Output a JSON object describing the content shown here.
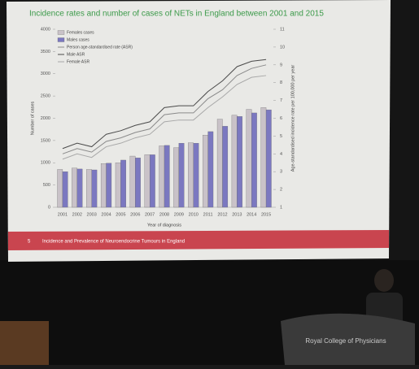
{
  "chart_data": {
    "type": "bar",
    "title": "Incidence rates and number of cases of NETs in England between 2001 and 2015",
    "x_label": "Year of diagnosis",
    "y_label": "Number of cases",
    "y2_label": "Age-standardised incidence rate per 100,000 per year",
    "categories": [
      "2001",
      "2002",
      "2003",
      "2004",
      "2005",
      "2006",
      "2007",
      "2008",
      "2009",
      "2010",
      "2011",
      "2012",
      "2013",
      "2014",
      "2015"
    ],
    "series": [
      {
        "name": "Females cases",
        "type": "bar",
        "color": "#c9c2c8",
        "values": [
          850,
          880,
          850,
          980,
          1000,
          1150,
          1180,
          1380,
          1340,
          1450,
          1620,
          1980,
          2070,
          2200,
          2240
        ]
      },
      {
        "name": "Males cases",
        "type": "bar",
        "color": "#7b78c0",
        "values": [
          800,
          860,
          840,
          990,
          1060,
          1110,
          1180,
          1390,
          1440,
          1440,
          1700,
          1820,
          2040,
          2120,
          2190
        ]
      },
      {
        "name": "Person age-standardised rate (ASR)",
        "type": "line",
        "axis": "y2",
        "color": "#8a8a8a",
        "values": [
          4.0,
          4.3,
          4.1,
          4.7,
          4.9,
          5.2,
          5.4,
          6.2,
          6.3,
          6.3,
          7.1,
          7.6,
          8.4,
          8.8,
          9.0
        ]
      },
      {
        "name": "Male ASR",
        "type": "line",
        "axis": "y2",
        "color": "#4a4a4a",
        "values": [
          4.3,
          4.6,
          4.4,
          5.1,
          5.3,
          5.6,
          5.8,
          6.6,
          6.7,
          6.7,
          7.5,
          8.1,
          8.9,
          9.2,
          9.3
        ]
      },
      {
        "name": "Female ASR",
        "type": "line",
        "axis": "y2",
        "color": "#a8a8a8",
        "values": [
          3.7,
          4.0,
          3.8,
          4.4,
          4.6,
          4.9,
          5.1,
          5.8,
          5.9,
          5.9,
          6.6,
          7.2,
          7.9,
          8.3,
          8.4
        ]
      }
    ],
    "ylim": [
      0,
      4000
    ],
    "yticks": [
      0,
      500,
      1000,
      1500,
      2000,
      2500,
      3000,
      3500,
      4000
    ],
    "y2lim": [
      1,
      11
    ],
    "y2ticks": [
      1,
      2,
      3,
      4,
      5,
      6,
      7,
      8,
      9,
      10,
      11
    ],
    "legend": "upper left"
  },
  "slide": {
    "number": "5",
    "footer": "Incidence and Prevalence of Neuroendocrine Tumours in England"
  },
  "podium": "Royal College of Physicians"
}
